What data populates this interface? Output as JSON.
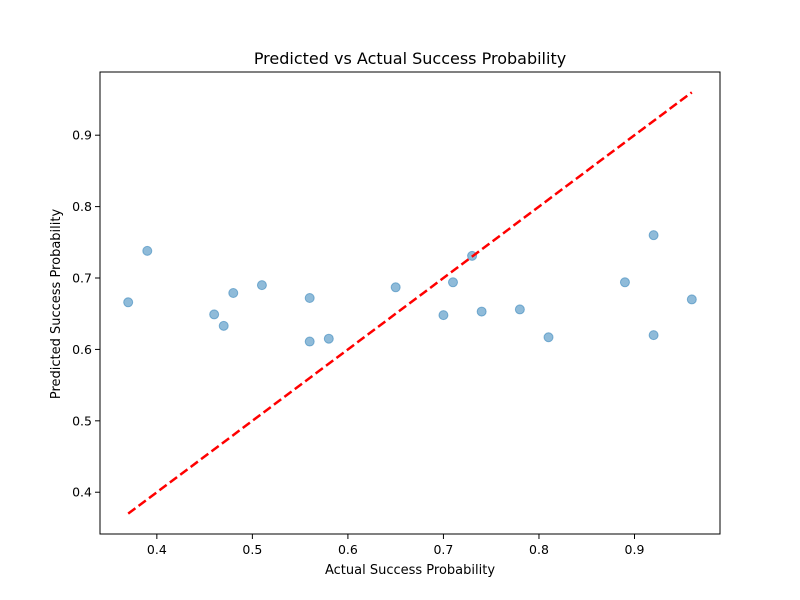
{
  "chart_data": {
    "type": "scatter",
    "title": "Predicted vs Actual Success Probability",
    "xlabel": "Actual Success Probability",
    "ylabel": "Predicted Success Probability",
    "xlim": [
      0.34,
      0.99
    ],
    "ylim": [
      0.34,
      0.99
    ],
    "xticks": [
      "0.4",
      "0.5",
      "0.6",
      "0.7",
      "0.8",
      "0.9"
    ],
    "yticks": [
      "0.4",
      "0.5",
      "0.6",
      "0.7",
      "0.8",
      "0.9"
    ],
    "grid": false,
    "points": [
      {
        "x": 0.37,
        "y": 0.666
      },
      {
        "x": 0.39,
        "y": 0.738
      },
      {
        "x": 0.46,
        "y": 0.649
      },
      {
        "x": 0.47,
        "y": 0.633
      },
      {
        "x": 0.48,
        "y": 0.679
      },
      {
        "x": 0.51,
        "y": 0.69
      },
      {
        "x": 0.56,
        "y": 0.672
      },
      {
        "x": 0.56,
        "y": 0.611
      },
      {
        "x": 0.58,
        "y": 0.615
      },
      {
        "x": 0.65,
        "y": 0.687
      },
      {
        "x": 0.7,
        "y": 0.648
      },
      {
        "x": 0.71,
        "y": 0.694
      },
      {
        "x": 0.73,
        "y": 0.731
      },
      {
        "x": 0.74,
        "y": 0.653
      },
      {
        "x": 0.78,
        "y": 0.656
      },
      {
        "x": 0.81,
        "y": 0.617
      },
      {
        "x": 0.89,
        "y": 0.694
      },
      {
        "x": 0.92,
        "y": 0.76
      },
      {
        "x": 0.92,
        "y": 0.62
      },
      {
        "x": 0.96,
        "y": 0.67
      }
    ],
    "reference_line": {
      "x": [
        0.37,
        0.96
      ],
      "y": [
        0.37,
        0.96
      ],
      "color": "#ff0000",
      "style": "dashed"
    },
    "point_color": "#1f77b4",
    "point_alpha": 0.5
  }
}
